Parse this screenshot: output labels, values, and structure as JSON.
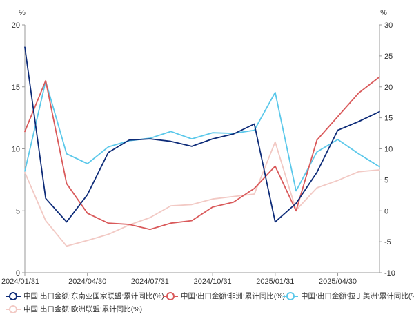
{
  "chart_data": {
    "type": "line",
    "left_axis": {
      "unit": "%",
      "ylim": [
        0,
        20
      ],
      "ticks": [
        "0",
        "5",
        "10",
        "15",
        "20"
      ]
    },
    "right_axis": {
      "unit": "%",
      "ylim": [
        -10,
        30
      ],
      "ticks": [
        "-10",
        "-5",
        "0",
        "5",
        "10",
        "15",
        "20",
        "25",
        "30"
      ]
    },
    "x_tick_labels": [
      "2024/01/31",
      "2024/04/30",
      "2024/07/31",
      "2024/10/31",
      "2025/01/31",
      "2025/04/30"
    ],
    "x": [
      "2024/01/31",
      "2024/02/29",
      "2024/03/31",
      "2024/04/30",
      "2024/05/31",
      "2024/06/30",
      "2024/07/31",
      "2024/08/31",
      "2024/09/30",
      "2024/10/31",
      "2024/11/30",
      "2024/12/31",
      "2025/01/31",
      "2025/02/28",
      "2025/03/31",
      "2025/04/30",
      "2025/05/31",
      "2025/06/30"
    ],
    "series": [
      {
        "name": "中国:出口金额:东南亚国家联盟:累计同比(%)",
        "axis": "left",
        "color": "#0d2b78",
        "values": [
          18.2,
          6.0,
          4.1,
          6.3,
          9.7,
          10.7,
          10.8,
          10.6,
          10.2,
          10.8,
          11.2,
          12.0,
          4.1,
          5.6,
          8.1,
          11.5,
          12.2,
          13.0
        ]
      },
      {
        "name": "中国:出口金额:非洲:累计同比(%)",
        "axis": "left",
        "color": "#d9595a",
        "values": [
          11.4,
          15.5,
          7.2,
          4.8,
          4.0,
          3.9,
          3.5,
          4.0,
          4.2,
          5.3,
          5.7,
          6.8,
          8.6,
          5.0,
          10.7,
          12.6,
          14.5,
          15.8
        ]
      },
      {
        "name": "中国:出口金额:拉丁美洲:累计同比(%)",
        "axis": "right",
        "color": "#5bc8ea",
        "values": [
          6.4,
          20.9,
          9.2,
          7.6,
          10.3,
          11.3,
          11.7,
          12.8,
          11.6,
          12.6,
          12.5,
          13.0,
          19.1,
          3.2,
          9.5,
          11.5,
          9.2,
          7.1
        ]
      },
      {
        "name": "中国:出口金额:欧洲联盟:累计同比(%)",
        "axis": "right",
        "color": "#f2c9c4",
        "values": [
          6.2,
          -1.6,
          -5.7,
          -4.8,
          -3.8,
          -2.3,
          -1.1,
          0.8,
          1.0,
          1.9,
          2.3,
          2.7,
          11.1,
          0.1,
          3.7,
          4.9,
          6.3,
          6.6
        ]
      }
    ]
  }
}
